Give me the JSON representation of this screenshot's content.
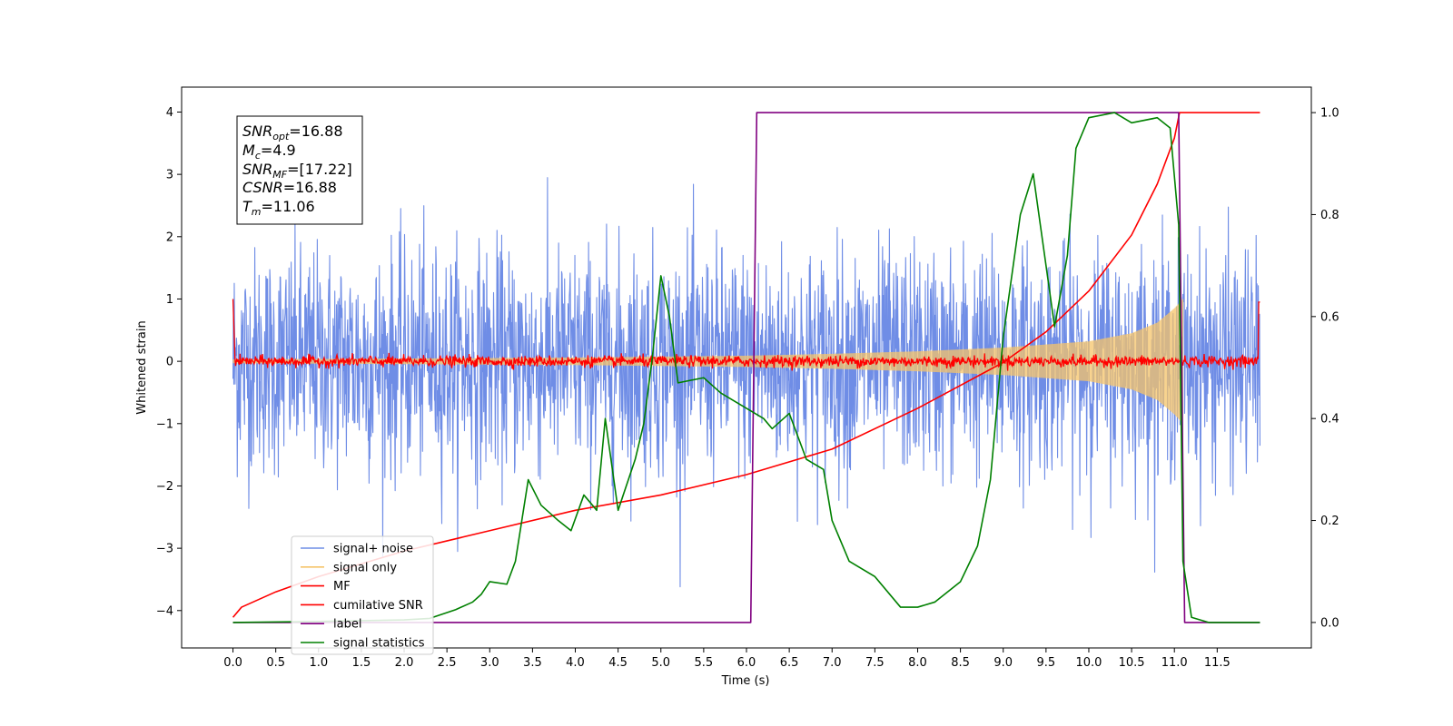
{
  "chart_data": {
    "type": "line",
    "xlabel": "Time (s)",
    "ylabel": "Whitened strain",
    "xlim": [
      -0.6,
      12.6
    ],
    "ylim": [
      -4.6,
      4.4
    ],
    "y2lim": [
      -0.05,
      1.05
    ],
    "x_ticks": [
      "0.0",
      "0.5",
      "1.0",
      "1.5",
      "2.0",
      "2.5",
      "3.0",
      "3.5",
      "4.0",
      "4.5",
      "5.0",
      "5.5",
      "6.0",
      "6.5",
      "7.0",
      "7.5",
      "8.0",
      "8.5",
      "9.0",
      "9.5",
      "10.0",
      "10.5",
      "11.0",
      "11.5"
    ],
    "y_ticks": [
      "4",
      "3",
      "2",
      "1",
      "0",
      "−1",
      "−2",
      "−3",
      "−4"
    ],
    "y2_ticks": [
      "1.0",
      "0.8",
      "0.6",
      "0.4",
      "0.2",
      "0.0"
    ],
    "grid": false,
    "legend_position": "lower-left",
    "annotation": {
      "snr_opt": {
        "base": "SNR",
        "sub": "opt",
        "value": "=16.88"
      },
      "mc": {
        "base": "M",
        "sub": "c",
        "value": "=4.9"
      },
      "snr_mf": {
        "base": "SNR",
        "sub": "MF",
        "value": "=[17.22]"
      },
      "csnr": {
        "base": "CSNR",
        "sub": "",
        "value": "=16.88"
      },
      "tm": {
        "base": "T",
        "sub": "m",
        "value": "=11.06"
      }
    },
    "series": [
      {
        "name": "signal+ noise",
        "color": "#6f8de6",
        "axis": "left",
        "kind": "noise",
        "sigma": 0.9,
        "t_range": [
          0,
          12
        ]
      },
      {
        "name": "signal only",
        "color": "#f5c46a",
        "axis": "left",
        "kind": "chirp",
        "t_range": [
          0,
          11.1
        ],
        "envelope": [
          [
            0,
            0.03
          ],
          [
            4,
            0.06
          ],
          [
            6,
            0.09
          ],
          [
            7,
            0.12
          ],
          [
            8,
            0.16
          ],
          [
            9,
            0.22
          ],
          [
            10,
            0.32
          ],
          [
            10.5,
            0.45
          ],
          [
            10.8,
            0.62
          ],
          [
            11.0,
            0.85
          ],
          [
            11.1,
            1.0
          ]
        ]
      },
      {
        "name": "MF",
        "color": "#ff0000",
        "axis": "left",
        "kind": "mf_noise",
        "t_range": [
          0,
          12
        ]
      },
      {
        "name": "cumilative SNR",
        "color": "#ff0000",
        "axis": "right",
        "kind": "line",
        "points": [
          [
            0,
            0.01
          ],
          [
            0.1,
            0.03
          ],
          [
            0.5,
            0.06
          ],
          [
            1,
            0.09
          ],
          [
            2,
            0.14
          ],
          [
            3,
            0.18
          ],
          [
            4,
            0.22
          ],
          [
            5,
            0.25
          ],
          [
            6,
            0.29
          ],
          [
            7,
            0.34
          ],
          [
            8,
            0.42
          ],
          [
            9,
            0.51
          ],
          [
            9.5,
            0.57
          ],
          [
            10,
            0.65
          ],
          [
            10.5,
            0.76
          ],
          [
            10.8,
            0.86
          ],
          [
            11.0,
            0.95
          ],
          [
            11.06,
            1.0
          ],
          [
            12,
            1.0
          ]
        ]
      },
      {
        "name": "label",
        "color": "#800080",
        "axis": "right",
        "kind": "line",
        "points": [
          [
            0,
            0.0
          ],
          [
            6.05,
            0.0
          ],
          [
            6.12,
            1.0
          ],
          [
            11.05,
            1.0
          ],
          [
            11.12,
            0.0
          ],
          [
            12,
            0.0
          ]
        ]
      },
      {
        "name": "signal statistics",
        "color": "#008000",
        "axis": "right",
        "kind": "line",
        "points": [
          [
            0,
            0.0
          ],
          [
            1,
            0.002
          ],
          [
            2,
            0.005
          ],
          [
            2.3,
            0.008
          ],
          [
            2.6,
            0.025
          ],
          [
            2.8,
            0.04
          ],
          [
            2.9,
            0.055
          ],
          [
            3.0,
            0.08
          ],
          [
            3.2,
            0.075
          ],
          [
            3.3,
            0.12
          ],
          [
            3.45,
            0.28
          ],
          [
            3.6,
            0.23
          ],
          [
            3.8,
            0.2
          ],
          [
            3.95,
            0.18
          ],
          [
            4.1,
            0.25
          ],
          [
            4.25,
            0.22
          ],
          [
            4.35,
            0.4
          ],
          [
            4.5,
            0.22
          ],
          [
            4.7,
            0.32
          ],
          [
            4.8,
            0.39
          ],
          [
            4.9,
            0.52
          ],
          [
            5.0,
            0.68
          ],
          [
            5.1,
            0.6
          ],
          [
            5.2,
            0.47
          ],
          [
            5.5,
            0.48
          ],
          [
            5.7,
            0.45
          ],
          [
            6.0,
            0.42
          ],
          [
            6.2,
            0.4
          ],
          [
            6.3,
            0.38
          ],
          [
            6.5,
            0.41
          ],
          [
            6.7,
            0.32
          ],
          [
            6.9,
            0.3
          ],
          [
            7.0,
            0.2
          ],
          [
            7.2,
            0.12
          ],
          [
            7.5,
            0.09
          ],
          [
            7.8,
            0.03
          ],
          [
            8.0,
            0.03
          ],
          [
            8.2,
            0.04
          ],
          [
            8.5,
            0.08
          ],
          [
            8.7,
            0.15
          ],
          [
            8.85,
            0.28
          ],
          [
            9.0,
            0.56
          ],
          [
            9.2,
            0.8
          ],
          [
            9.35,
            0.88
          ],
          [
            9.5,
            0.7
          ],
          [
            9.6,
            0.58
          ],
          [
            9.75,
            0.72
          ],
          [
            9.85,
            0.93
          ],
          [
            10.0,
            0.99
          ],
          [
            10.3,
            1.0
          ],
          [
            10.5,
            0.98
          ],
          [
            10.8,
            0.99
          ],
          [
            10.95,
            0.97
          ],
          [
            11.05,
            0.78
          ],
          [
            11.1,
            0.12
          ],
          [
            11.2,
            0.01
          ],
          [
            11.4,
            0.0
          ],
          [
            12,
            0.0
          ]
        ]
      }
    ]
  }
}
